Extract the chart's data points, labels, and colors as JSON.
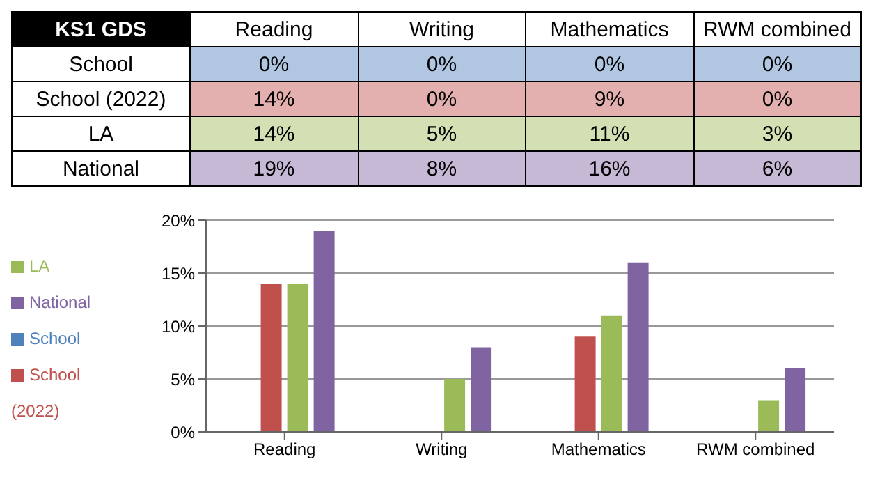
{
  "chart_data": {
    "type": "bar",
    "title": "KS1 GDS",
    "categories": [
      "Reading",
      "Writing",
      "Mathematics",
      "RWM combined"
    ],
    "series": [
      {
        "name": "School",
        "color": "#4f81bd",
        "values": [
          0,
          0,
          0,
          0
        ],
        "value_labels": [
          "0%",
          "0%",
          "0%",
          "0%"
        ]
      },
      {
        "name": "School (2022)",
        "color": "#c0504d",
        "values": [
          14,
          0,
          9,
          0
        ],
        "value_labels": [
          "14%",
          "0%",
          "9%",
          "0%"
        ]
      },
      {
        "name": "LA",
        "color": "#9bbb59",
        "values": [
          14,
          5,
          11,
          3
        ],
        "value_labels": [
          "14%",
          "5%",
          "11%",
          "3%"
        ]
      },
      {
        "name": "National",
        "color": "#8064a2",
        "values": [
          19,
          8,
          16,
          6
        ],
        "value_labels": [
          "19%",
          "8%",
          "16%",
          "6%"
        ]
      }
    ],
    "data_labels": true,
    "ylim": [
      0,
      20
    ],
    "yticks": [
      {
        "value": 0,
        "label": "0%"
      },
      {
        "value": 5,
        "label": "5%"
      },
      {
        "value": 10,
        "label": "10%"
      },
      {
        "value": 15,
        "label": "15%"
      },
      {
        "value": 20,
        "label": "20%"
      }
    ],
    "grid": "y",
    "legend": "left"
  }
}
